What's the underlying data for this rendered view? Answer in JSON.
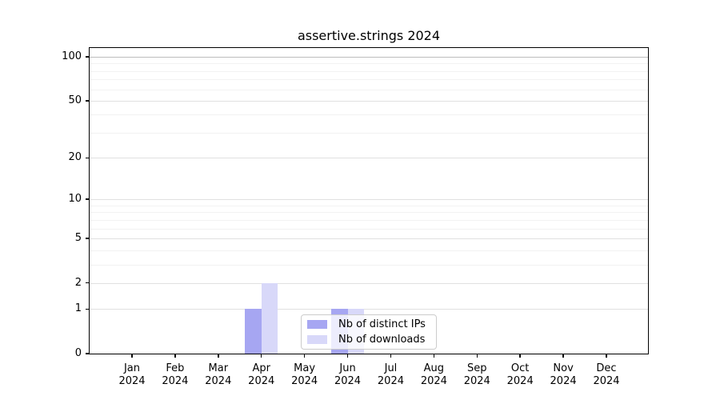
{
  "figure": {
    "background": "#ffffff"
  },
  "chart_data": {
    "type": "bar",
    "title": "assertive.strings 2024",
    "categories": [
      "Jan",
      "Feb",
      "Mar",
      "Apr",
      "May",
      "Jun",
      "Jul",
      "Aug",
      "Sep",
      "Oct",
      "Nov",
      "Dec"
    ],
    "x_year_label": "2024",
    "series": [
      {
        "name": "Nb of distinct IPs",
        "color": "#a6a6f2",
        "values": [
          0,
          0,
          0,
          1,
          0,
          1,
          0,
          0,
          0,
          0,
          0,
          0
        ]
      },
      {
        "name": "Nb of downloads",
        "color": "#d8d8f9",
        "values": [
          0,
          0,
          0,
          2,
          0,
          1,
          0,
          0,
          0,
          0,
          0,
          0
        ]
      }
    ],
    "y_axis": {
      "scale": "log1p",
      "ticks": [
        0,
        1,
        2,
        5,
        10,
        20,
        50,
        100
      ],
      "minor_gridlines": [
        3,
        4,
        6,
        7,
        8,
        9,
        30,
        40,
        60,
        70,
        80,
        90
      ],
      "range": [
        0,
        115
      ]
    },
    "legend": {
      "position": "lower center",
      "frame_alpha": 0.8
    },
    "grid": true
  }
}
